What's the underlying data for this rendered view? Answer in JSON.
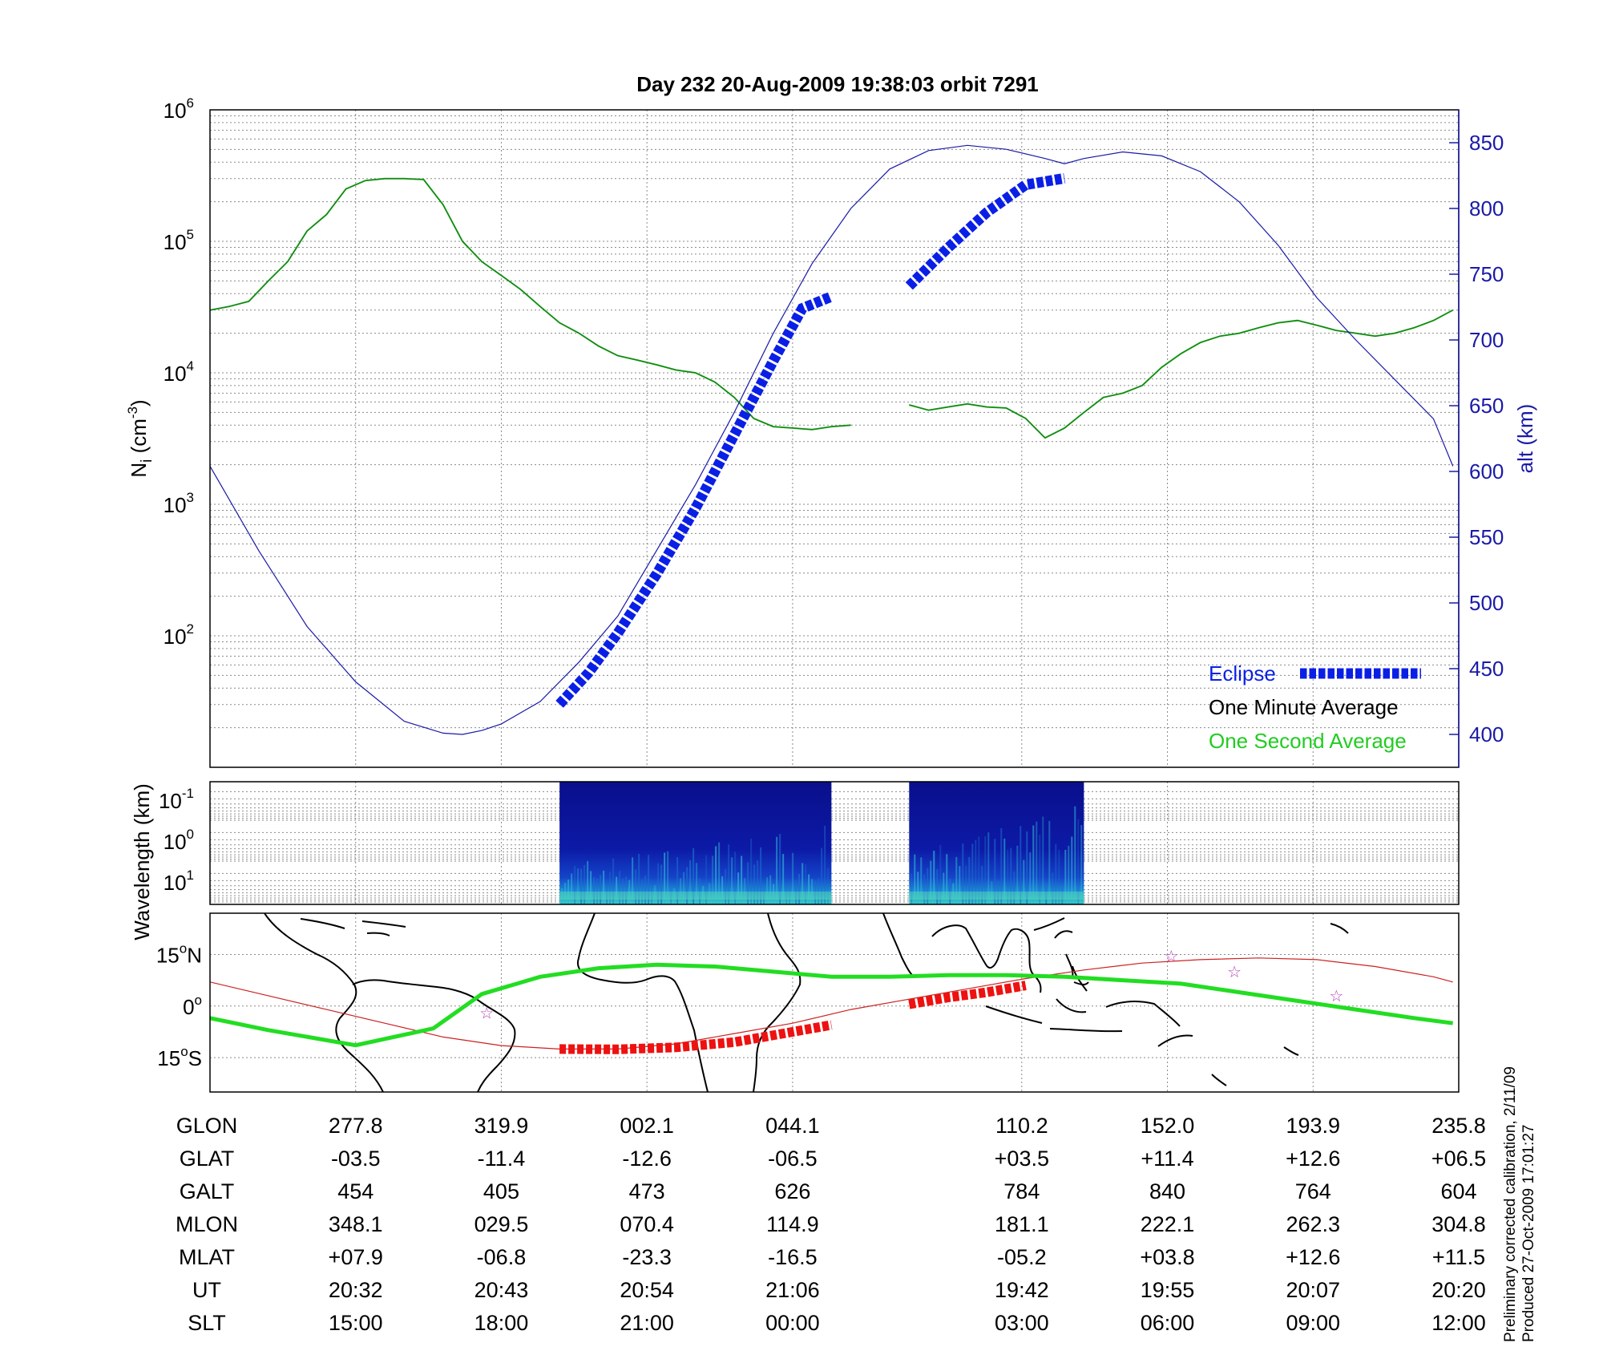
{
  "title": "Day 232  20-Aug-2009 19:38:03   orbit 7291",
  "colors": {
    "density": "#1e7a1e",
    "density_second": "#22cc22",
    "altitude": "#1a1aa8",
    "eclipse": "#0a1fe6",
    "track": "#22dd22",
    "track_eclipse": "#ee1111",
    "magnetic_equator": "#cc2222",
    "station_marker": "#bb44bb",
    "spectrogram_bg": "#0a0f8c"
  },
  "chart_data": [
    {
      "id": "density_altitude",
      "type": "line",
      "ylabel": "N",
      "ylabel_sub": "i",
      "ylabel_unit": " (cm",
      "ylabel_exp": "-3",
      "ylabel_close": ")",
      "ylabel_right": "alt (km)",
      "y_left_scale": "log",
      "ylim_left": [
        10,
        1000000
      ],
      "y_left_ticks": [
        {
          "base": "10",
          "exp": "6",
          "value": 1000000
        },
        {
          "base": "10",
          "exp": "5",
          "value": 100000
        },
        {
          "base": "10",
          "exp": "4",
          "value": 10000
        },
        {
          "base": "10",
          "exp": "3",
          "value": 1000
        },
        {
          "base": "10",
          "exp": "2",
          "value": 100
        }
      ],
      "ylim_right": [
        375,
        875
      ],
      "y_right_ticks": [
        "850",
        "800",
        "750",
        "700",
        "650",
        "600",
        "550",
        "500",
        "450",
        "400"
      ],
      "grid": true,
      "legend": {
        "placement": "bottom-right",
        "entries": [
          {
            "label": "Eclipse",
            "color": "#0a1fe6"
          },
          {
            "label": "One Minute Average",
            "color": "#000000"
          },
          {
            "label": "One Second Average",
            "color": "#22cc22"
          }
        ]
      },
      "series": [
        {
          "name": "One Minute Average",
          "axis": "left",
          "segments": [
            [
              [
                0,
                30000
              ],
              [
                0.2,
                32000
              ],
              [
                0.4,
                35000
              ],
              [
                0.6,
                50000
              ],
              [
                0.8,
                70000
              ],
              [
                1.0,
                120000
              ],
              [
                1.2,
                160000
              ],
              [
                1.4,
                250000
              ],
              [
                1.6,
                290000
              ],
              [
                1.8,
                300000
              ],
              [
                2.0,
                300000
              ],
              [
                2.2,
                295000
              ],
              [
                2.4,
                190000
              ],
              [
                2.6,
                100000
              ],
              [
                2.8,
                70000
              ],
              [
                3.0,
                55000
              ],
              [
                3.2,
                43000
              ],
              [
                3.4,
                32000
              ],
              [
                3.6,
                24000
              ],
              [
                3.8,
                20000
              ],
              [
                4.0,
                16000
              ],
              [
                4.2,
                13500
              ],
              [
                4.4,
                12500
              ],
              [
                4.6,
                11500
              ],
              [
                4.8,
                10500
              ],
              [
                5.0,
                10000
              ],
              [
                5.2,
                8500
              ],
              [
                5.4,
                6500
              ],
              [
                5.6,
                4500
              ],
              [
                5.8,
                3900
              ],
              [
                6.0,
                3800
              ],
              [
                6.2,
                3700
              ],
              [
                6.4,
                3900
              ],
              [
                6.6,
                4000
              ]
            ],
            [
              [
                7.2,
                5700
              ],
              [
                7.4,
                5200
              ],
              [
                7.6,
                5500
              ],
              [
                7.8,
                5800
              ],
              [
                8.0,
                5500
              ],
              [
                8.2,
                5400
              ],
              [
                8.4,
                4500
              ],
              [
                8.6,
                3200
              ],
              [
                8.8,
                3800
              ],
              [
                9.0,
                5000
              ],
              [
                9.2,
                6500
              ],
              [
                9.4,
                7000
              ],
              [
                9.6,
                8000
              ],
              [
                9.8,
                11000
              ],
              [
                10.0,
                14000
              ],
              [
                10.2,
                17000
              ],
              [
                10.4,
                19000
              ],
              [
                10.6,
                20000
              ],
              [
                10.8,
                22000
              ],
              [
                11.0,
                24000
              ],
              [
                11.2,
                25000
              ],
              [
                11.4,
                23000
              ],
              [
                11.6,
                21000
              ],
              [
                11.8,
                20000
              ],
              [
                12.0,
                19000
              ],
              [
                12.2,
                20000
              ],
              [
                12.4,
                22000
              ],
              [
                12.6,
                25000
              ],
              [
                12.8,
                30000
              ]
            ]
          ]
        },
        {
          "name": "Altitude",
          "axis": "right",
          "segments": [
            [
              [
                0,
                604
              ],
              [
                0.5,
                540
              ],
              [
                1.0,
                482
              ],
              [
                1.5,
                440
              ],
              [
                2.0,
                410
              ],
              [
                2.4,
                401
              ],
              [
                2.6,
                400
              ],
              [
                2.8,
                403
              ],
              [
                3.0,
                408
              ],
              [
                3.4,
                425
              ],
              [
                3.8,
                455
              ],
              [
                4.2,
                490
              ],
              [
                4.6,
                540
              ],
              [
                5.0,
                590
              ],
              [
                5.4,
                645
              ],
              [
                5.8,
                705
              ],
              [
                6.2,
                758
              ],
              [
                6.6,
                800
              ],
              [
                7.0,
                830
              ],
              [
                7.4,
                844
              ],
              [
                7.8,
                848
              ],
              [
                8.2,
                845
              ],
              [
                8.6,
                838
              ],
              [
                8.8,
                834
              ],
              [
                9.0,
                838
              ],
              [
                9.4,
                843
              ],
              [
                9.8,
                840
              ],
              [
                10.2,
                828
              ],
              [
                10.6,
                805
              ],
              [
                11.0,
                772
              ],
              [
                11.4,
                732
              ],
              [
                11.8,
                700
              ],
              [
                12.2,
                670
              ],
              [
                12.6,
                640
              ],
              [
                12.8,
                604
              ]
            ]
          ]
        },
        {
          "name": "Eclipse",
          "axis": "right",
          "segments": [
            [
              [
                3.6,
                423
              ],
              [
                3.9,
                447
              ],
              [
                4.2,
                477
              ],
              [
                4.6,
                522
              ],
              [
                5.0,
                572
              ],
              [
                5.4,
                628
              ],
              [
                5.8,
                684
              ],
              [
                6.1,
                724
              ],
              [
                6.4,
                733
              ]
            ],
            [
              [
                7.2,
                741
              ],
              [
                7.6,
                770
              ],
              [
                8.0,
                797
              ],
              [
                8.4,
                818
              ],
              [
                8.8,
                823
              ]
            ]
          ]
        }
      ]
    },
    {
      "id": "spectrogram",
      "type": "heatmap",
      "ylabel": "Wavelength (km)",
      "y_ticks": [
        {
          "base": "10",
          "exp": "-1"
        },
        {
          "base": "10",
          "exp": "0"
        },
        {
          "base": "10",
          "exp": "1"
        }
      ],
      "data_windows": [
        [
          3.6,
          6.4
        ],
        [
          7.2,
          9.0
        ]
      ],
      "grid": true
    },
    {
      "id": "ground_track",
      "type": "line",
      "y_ticks": [
        {
          "deg": "15",
          "dir": "N",
          "value": 15
        },
        {
          "deg": "0",
          "dir": "",
          "value": 0
        },
        {
          "deg": "15",
          "dir": "S",
          "value": -15
        }
      ],
      "ylim": [
        -25,
        27
      ],
      "series": [
        {
          "name": "Ground track",
          "points": [
            [
              0,
              -3.5
            ],
            [
              0.6,
              -7
            ],
            [
              1.5,
              -11.4
            ],
            [
              2.3,
              -6.5
            ],
            [
              2.8,
              3.5
            ],
            [
              3.4,
              8.5
            ],
            [
              4.0,
              11
            ],
            [
              4.6,
              12
            ],
            [
              5.2,
              11.5
            ],
            [
              5.8,
              10
            ],
            [
              6.4,
              8.5
            ],
            [
              7.0,
              8.5
            ],
            [
              7.6,
              9
            ],
            [
              8.2,
              9
            ],
            [
              8.8,
              8.5
            ],
            [
              9.4,
              7.5
            ],
            [
              10.0,
              6.5
            ],
            [
              10.6,
              4
            ],
            [
              11.2,
              1.5
            ],
            [
              11.8,
              -1
            ],
            [
              12.4,
              -3.5
            ],
            [
              12.8,
              -5
            ]
          ]
        },
        {
          "name": "Eclipse track",
          "segments": [
            [
              [
                3.6,
                -12.5
              ],
              [
                4.2,
                -12.6
              ],
              [
                4.8,
                -12
              ],
              [
                5.4,
                -10.5
              ],
              [
                6.0,
                -7.5
              ],
              [
                6.4,
                -5.5
              ]
            ],
            [
              [
                7.2,
                0.5
              ],
              [
                7.6,
                2.5
              ],
              [
                8.0,
                4
              ],
              [
                8.4,
                6
              ]
            ]
          ]
        },
        {
          "name": "Magnetic equator",
          "points": [
            [
              0,
              7
            ],
            [
              0.6,
              3
            ],
            [
              1.2,
              -1
            ],
            [
              1.8,
              -5
            ],
            [
              2.4,
              -9
            ],
            [
              3.0,
              -11.5
            ],
            [
              3.6,
              -12.5
            ],
            [
              4.2,
              -12.5
            ],
            [
              4.8,
              -11
            ],
            [
              5.4,
              -8
            ],
            [
              6.0,
              -5
            ],
            [
              6.6,
              -1
            ],
            [
              7.2,
              2
            ],
            [
              7.8,
              5
            ],
            [
              8.4,
              8
            ],
            [
              9.0,
              10.5
            ],
            [
              9.6,
              12.5
            ],
            [
              10.2,
              13.5
            ],
            [
              10.8,
              14
            ],
            [
              11.4,
              13.5
            ],
            [
              12.0,
              11.5
            ],
            [
              12.6,
              8.5
            ],
            [
              12.8,
              7
            ]
          ]
        },
        {
          "name": "Stations",
          "points": [
            [
              2.85,
              -2
            ],
            [
              9.9,
              14.5
            ],
            [
              10.55,
              10
            ],
            [
              11.6,
              3
            ]
          ]
        }
      ]
    }
  ],
  "table": {
    "row_labels": [
      "GLON",
      "GLAT",
      "GALT",
      "MLON",
      "MLAT",
      "UT",
      "SLT"
    ],
    "x_positions": [
      1.5,
      3.0,
      4.5,
      6.0,
      8.36,
      9.86,
      11.36,
      12.86
    ],
    "columns": [
      [
        "277.8",
        "-03.5",
        "454",
        "348.1",
        "+07.9",
        "20:32",
        "15:00"
      ],
      [
        "319.9",
        "-11.4",
        "405",
        "029.5",
        "-06.8",
        "20:43",
        "18:00"
      ],
      [
        "002.1",
        "-12.6",
        "473",
        "070.4",
        "-23.3",
        "20:54",
        "21:00"
      ],
      [
        "044.1",
        "-06.5",
        "626",
        "114.9",
        "-16.5",
        "21:06",
        "00:00"
      ],
      [
        "110.2",
        "+03.5",
        "784",
        "181.1",
        "-05.2",
        "19:42",
        "03:00"
      ],
      [
        "152.0",
        "+11.4",
        "840",
        "222.1",
        "+03.8",
        "19:55",
        "06:00"
      ],
      [
        "193.9",
        "+12.6",
        "764",
        "262.3",
        "+12.6",
        "20:07",
        "09:00"
      ],
      [
        "235.8",
        "+06.5",
        "604",
        "304.8",
        "+11.5",
        "20:20",
        "12:00"
      ]
    ]
  },
  "footer": {
    "calibration": "Preliminary corrected calibration, 2/11/09",
    "produced": "Produced 27-Oct-2009 17:01:27"
  }
}
